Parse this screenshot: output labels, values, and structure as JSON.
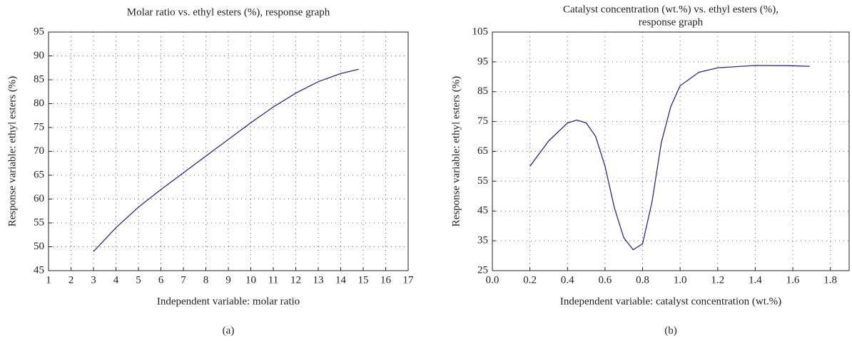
{
  "chart_data": [
    {
      "type": "line",
      "title": [
        "Molar ratio vs. ethyl esters (%), response graph"
      ],
      "xlabel": "Independent variable: molar ratio",
      "ylabel": "Response variable: ethyl esters (%)",
      "panel_label": "(a)",
      "x": [
        3,
        4,
        5,
        6,
        7,
        8,
        9,
        10,
        11,
        12,
        13,
        14,
        14.8
      ],
      "series": [
        {
          "name": "ethyl esters",
          "color": "#2e2a8a",
          "values": [
            49,
            54,
            58.3,
            62,
            65.5,
            69,
            72.5,
            76,
            79.3,
            82.2,
            84.6,
            86.3,
            87.2
          ]
        }
      ],
      "xlim": [
        1,
        17
      ],
      "xticks": [
        1,
        2,
        3,
        4,
        5,
        6,
        7,
        8,
        9,
        10,
        11,
        12,
        13,
        14,
        15,
        16,
        17
      ],
      "ylim": [
        45,
        95
      ],
      "yticks": [
        45,
        50,
        55,
        60,
        65,
        70,
        75,
        80,
        85,
        90,
        95
      ],
      "grid": true
    },
    {
      "type": "line",
      "title": [
        "Catalyst concentration (wt.%) vs. ethyl esters (%),",
        "response graph"
      ],
      "xlabel": "Independent variable: catalyst concentration (wt.%)",
      "ylabel": "Response variable: ethyl esters (%)",
      "panel_label": "(b)",
      "x": [
        0.2,
        0.3,
        0.4,
        0.45,
        0.5,
        0.55,
        0.6,
        0.65,
        0.7,
        0.75,
        0.8,
        0.85,
        0.9,
        0.95,
        1.0,
        1.1,
        1.2,
        1.4,
        1.6,
        1.69
      ],
      "series": [
        {
          "name": "ethyl esters",
          "color": "#2e2a8a",
          "values": [
            60,
            68.5,
            74.5,
            75.5,
            74.5,
            70,
            60,
            46,
            36,
            32,
            34,
            48,
            68,
            80,
            87,
            91.5,
            93,
            93.8,
            93.7,
            93.5
          ]
        }
      ],
      "xlim": [
        0,
        1.9
      ],
      "xticks": [
        {
          "value": 0,
          "label": "0.0"
        },
        0.2,
        0.4,
        0.6,
        0.8,
        {
          "value": 1,
          "label": "1.0"
        },
        1.2,
        1.4,
        1.6,
        1.8
      ],
      "ylim": [
        25,
        105
      ],
      "yticks": [
        25,
        35,
        45,
        55,
        65,
        75,
        85,
        95,
        105
      ],
      "grid": true
    }
  ]
}
